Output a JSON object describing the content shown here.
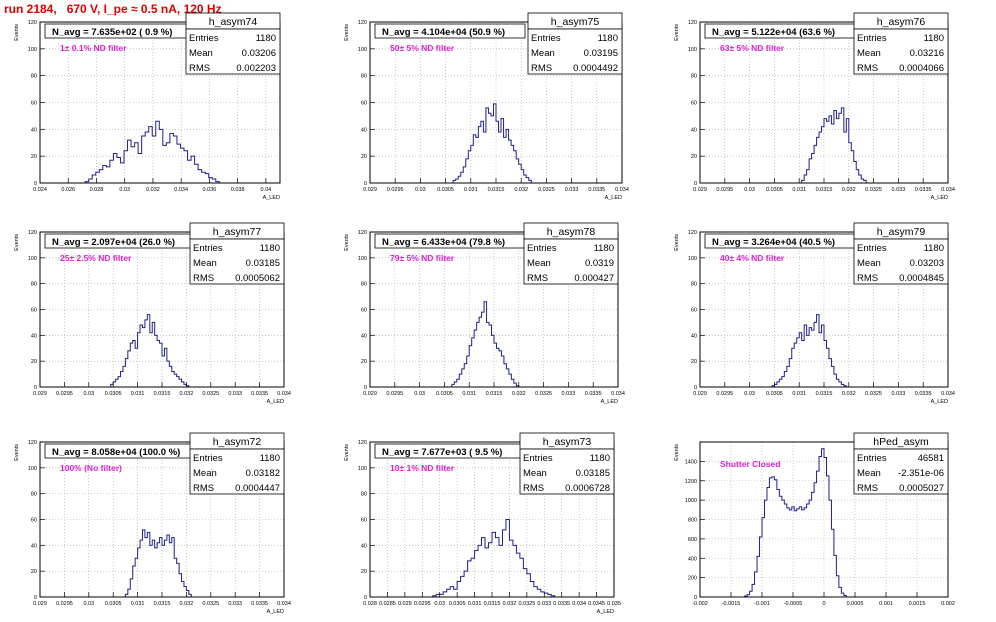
{
  "page": {
    "title": "run 2184,   670 V, I_pe ≈ 0.5 nA, 120 Hz"
  },
  "colors": {
    "histogram": "#1f1f8f",
    "frame": "#000000",
    "grid": "#a8a8a8",
    "title": "#e00000",
    "annotation": "#e020d0"
  },
  "chart_data": [
    {
      "type": "bar",
      "name": "h_asym74",
      "header": "N_avg = 7.635e+02 ( 0.9 %)",
      "filter": "1± 0.1% ND filter",
      "stats": [
        [
          "Entries",
          "1180"
        ],
        [
          "Mean",
          "0.03206"
        ],
        [
          "RMS",
          "0.002203"
        ]
      ],
      "ylabel": "Events",
      "xlabel": "A_LED",
      "xlim": [
        0.024,
        0.041
      ],
      "ylim": [
        0,
        120
      ],
      "xticks": [
        0.024,
        0.026,
        0.028,
        0.03,
        0.032,
        0.034,
        0.036,
        0.038,
        0.04
      ],
      "xticklabels": [
        "0.024",
        "0.026",
        "0.028",
        "0.03",
        "0.032",
        "0.034",
        "0.036",
        "0.038",
        "0.04"
      ],
      "yticks": [
        0,
        20,
        40,
        60,
        80,
        100,
        120
      ],
      "yticklabels": [
        "0",
        "20",
        "40",
        "60",
        "80",
        "100",
        "120"
      ],
      "bin_start": 0.0272,
      "bin_width": 0.00025,
      "values": [
        1,
        3,
        6,
        8,
        10,
        13,
        12,
        17,
        22,
        19,
        15,
        24,
        32,
        27,
        30,
        22,
        35,
        38,
        42,
        35,
        46,
        40,
        28,
        30,
        37,
        35,
        29,
        26,
        24,
        17,
        20,
        14,
        10,
        8,
        7,
        4,
        3,
        1
      ]
    },
    {
      "type": "bar",
      "name": "h_asym75",
      "header": "N_avg = 4.104e+04 (50.9 %)",
      "filter": "50± 5% ND filter",
      "stats": [
        [
          "Entries",
          "1180"
        ],
        [
          "Mean",
          "0.03195"
        ],
        [
          "RMS",
          "0.0004492"
        ]
      ],
      "ylabel": "Events",
      "xlabel": "A_LED",
      "xlim": [
        0.029,
        0.034
      ],
      "ylim": [
        0,
        120
      ],
      "xticks": [
        0.029,
        0.0295,
        0.03,
        0.0305,
        0.031,
        0.0315,
        0.032,
        0.0325,
        0.033,
        0.0335,
        0.034
      ],
      "xticklabels": [
        "0.029",
        "0.0295",
        "0.03",
        "0.0305",
        "0.031",
        "0.0315",
        "0.032",
        "0.0325",
        "0.033",
        "0.0335",
        "0.034"
      ],
      "yticks": [
        0,
        20,
        40,
        60,
        80,
        100,
        120
      ],
      "yticklabels": [
        "0",
        "20",
        "40",
        "60",
        "80",
        "100",
        "120"
      ],
      "bin_start": 0.03065,
      "bin_width": 5e-05,
      "values": [
        2,
        3,
        5,
        8,
        12,
        18,
        24,
        28,
        36,
        34,
        42,
        46,
        38,
        56,
        52,
        50,
        59,
        46,
        38,
        48,
        34,
        40,
        32,
        28,
        24,
        18,
        14,
        10,
        6,
        4,
        2
      ]
    },
    {
      "type": "bar",
      "name": "h_asym76",
      "header": "N_avg = 5.122e+04 (63.6 %)",
      "filter": "63± 5% ND filter",
      "stats": [
        [
          "Entries",
          "1180"
        ],
        [
          "Mean",
          "0.03216"
        ],
        [
          "RMS",
          "0.0004066"
        ]
      ],
      "ylabel": "Events",
      "xlabel": "A_LED",
      "xlim": [
        0.029,
        0.034
      ],
      "ylim": [
        0,
        120
      ],
      "xticks": [
        0.029,
        0.0295,
        0.03,
        0.0305,
        0.031,
        0.0315,
        0.032,
        0.0325,
        0.033,
        0.0335,
        0.034
      ],
      "xticklabels": [
        "0.029",
        "0.0295",
        "0.03",
        "0.0305",
        "0.031",
        "0.0315",
        "0.032",
        "0.0325",
        "0.033",
        "0.0335",
        "0.034"
      ],
      "yticks": [
        0,
        20,
        40,
        60,
        80,
        100,
        120
      ],
      "yticklabels": [
        "0",
        "20",
        "40",
        "60",
        "80",
        "100",
        "120"
      ],
      "bin_start": 0.03105,
      "bin_width": 5e-05,
      "values": [
        2,
        6,
        10,
        18,
        22,
        28,
        34,
        38,
        42,
        48,
        46,
        50,
        44,
        54,
        48,
        52,
        56,
        38,
        48,
        30,
        24,
        16,
        10,
        6,
        3,
        2
      ]
    },
    {
      "type": "bar",
      "name": "h_asym77",
      "header": "N_avg = 2.097e+04 (26.0 %)",
      "filter": "25± 2.5% ND filter",
      "stats": [
        [
          "Entries",
          "1180"
        ],
        [
          "Mean",
          "0.03185"
        ],
        [
          "RMS",
          "0.0005062"
        ]
      ],
      "ylabel": "Events",
      "xlabel": "A_LED",
      "xlim": [
        0.029,
        0.034
      ],
      "ylim": [
        0,
        120
      ],
      "xticks": [
        0.029,
        0.0295,
        0.03,
        0.0305,
        0.031,
        0.0315,
        0.032,
        0.0325,
        0.033,
        0.0335,
        0.034
      ],
      "xticklabels": [
        "0.029",
        "0.0295",
        "0.03",
        "0.0305",
        "0.031",
        "0.0315",
        "0.032",
        "0.0325",
        "0.033",
        "0.0335",
        "0.034"
      ],
      "yticks": [
        0,
        20,
        40,
        60,
        80,
        100,
        120
      ],
      "yticklabels": [
        "0",
        "20",
        "40",
        "60",
        "80",
        "100",
        "120"
      ],
      "bin_start": 0.03045,
      "bin_width": 5e-05,
      "values": [
        2,
        4,
        6,
        8,
        12,
        16,
        22,
        28,
        34,
        36,
        30,
        42,
        48,
        46,
        52,
        56,
        42,
        50,
        40,
        36,
        34,
        24,
        30,
        20,
        16,
        12,
        10,
        8,
        6,
        4,
        2,
        1
      ]
    },
    {
      "type": "bar",
      "name": "h_asym78",
      "header": "N_avg = 6.433e+04 (79.8 %)",
      "filter": "79± 5% ND filter",
      "stats": [
        [
          "Entries",
          "1180"
        ],
        [
          "Mean",
          "0.0319"
        ],
        [
          "RMS",
          "0.000427"
        ]
      ],
      "ylabel": "Events",
      "xlabel": "A_LED",
      "xlim": [
        0.029,
        0.034
      ],
      "ylim": [
        0,
        120
      ],
      "xticks": [
        0.029,
        0.0295,
        0.03,
        0.0305,
        0.031,
        0.0315,
        0.032,
        0.0325,
        0.033,
        0.0335,
        0.034
      ],
      "xticklabels": [
        "0.029",
        "0.0295",
        "0.03",
        "0.0305",
        "0.031",
        "0.0315",
        "0.032",
        "0.0325",
        "0.033",
        "0.0335",
        "0.034"
      ],
      "yticks": [
        0,
        20,
        40,
        60,
        80,
        100,
        120
      ],
      "yticklabels": [
        "0",
        "20",
        "40",
        "60",
        "80",
        "100",
        "120"
      ],
      "bin_start": 0.03065,
      "bin_width": 5e-05,
      "values": [
        2,
        4,
        6,
        10,
        14,
        18,
        24,
        32,
        38,
        44,
        50,
        54,
        58,
        66,
        50,
        48,
        40,
        34,
        30,
        28,
        24,
        18,
        14,
        10,
        6,
        3,
        1
      ]
    },
    {
      "type": "bar",
      "name": "h_asym79",
      "header": "N_avg = 3.264e+04 (40.5 %)",
      "filter": "40± 4% ND filter",
      "stats": [
        [
          "Entries",
          "1180"
        ],
        [
          "Mean",
          "0.03203"
        ],
        [
          "RMS",
          "0.0004845"
        ]
      ],
      "ylabel": "Events",
      "xlabel": "A_LED",
      "xlim": [
        0.029,
        0.034
      ],
      "ylim": [
        0,
        120
      ],
      "xticks": [
        0.029,
        0.0295,
        0.03,
        0.0305,
        0.031,
        0.0315,
        0.032,
        0.0325,
        0.033,
        0.0335,
        0.034
      ],
      "xticklabels": [
        "0.029",
        "0.0295",
        "0.03",
        "0.0305",
        "0.031",
        "0.0315",
        "0.032",
        "0.0325",
        "0.033",
        "0.0335",
        "0.034"
      ],
      "yticks": [
        0,
        20,
        40,
        60,
        80,
        100,
        120
      ],
      "yticklabels": [
        "0",
        "20",
        "40",
        "60",
        "80",
        "100",
        "120"
      ],
      "bin_start": 0.03045,
      "bin_width": 5e-05,
      "values": [
        1,
        2,
        4,
        6,
        8,
        12,
        16,
        22,
        30,
        34,
        38,
        42,
        36,
        48,
        40,
        46,
        44,
        50,
        56,
        42,
        48,
        36,
        30,
        22,
        16,
        10,
        6,
        4,
        2,
        1
      ]
    },
    {
      "type": "bar",
      "name": "h_asym72",
      "header": "N_avg = 8.058e+04 (100.0 %)",
      "filter": "100% (No filter)",
      "stats": [
        [
          "Entries",
          "1180"
        ],
        [
          "Mean",
          "0.03182"
        ],
        [
          "RMS",
          "0.0004447"
        ]
      ],
      "ylabel": "Events",
      "xlabel": "A_LED",
      "xlim": [
        0.029,
        0.034
      ],
      "ylim": [
        0,
        120
      ],
      "xticks": [
        0.029,
        0.0295,
        0.03,
        0.0305,
        0.031,
        0.0315,
        0.032,
        0.0325,
        0.033,
        0.0335,
        0.034
      ],
      "xticklabels": [
        "0.029",
        "0.0295",
        "0.03",
        "0.0305",
        "0.031",
        "0.0315",
        "0.032",
        "0.0325",
        "0.033",
        "0.0335",
        "0.034"
      ],
      "yticks": [
        0,
        20,
        40,
        60,
        80,
        100,
        120
      ],
      "yticklabels": [
        "0",
        "20",
        "40",
        "60",
        "80",
        "100",
        "120"
      ],
      "bin_start": 0.03075,
      "bin_width": 5e-05,
      "values": [
        2,
        6,
        14,
        24,
        30,
        38,
        44,
        52,
        46,
        50,
        40,
        44,
        38,
        42,
        46,
        40,
        44,
        48,
        42,
        46,
        30,
        26,
        18,
        12,
        8,
        5,
        2
      ]
    },
    {
      "type": "bar",
      "name": "h_asym73",
      "header": "N_avg = 7.677e+03 ( 9.5 %)",
      "filter": "10± 1% ND filter",
      "stats": [
        [
          "Entries",
          "1180"
        ],
        [
          "Mean",
          "0.03185"
        ],
        [
          "RMS",
          "0.0006728"
        ]
      ],
      "ylabel": "Events",
      "xlabel": "A_LED",
      "xlim": [
        0.028,
        0.035
      ],
      "ylim": [
        0,
        120
      ],
      "xticks": [
        0.028,
        0.0285,
        0.029,
        0.0295,
        0.03,
        0.0305,
        0.031,
        0.0315,
        0.032,
        0.0325,
        0.033,
        0.0335,
        0.034,
        0.0345,
        0.035
      ],
      "xticklabels": [
        "0.028",
        "0.0285",
        "0.029",
        "0.0295",
        "0.03",
        "0.0305",
        "0.031",
        "0.0315",
        "0.032",
        "0.0325",
        "0.033",
        "0.0335",
        "0.034",
        "0.0345",
        "0.035"
      ],
      "yticks": [
        0,
        20,
        40,
        60,
        80,
        100,
        120
      ],
      "yticklabels": [
        "0",
        "20",
        "40",
        "60",
        "80",
        "100",
        "120"
      ],
      "bin_start": 0.0298,
      "bin_width": 0.0001,
      "values": [
        1,
        2,
        2,
        4,
        6,
        8,
        6,
        12,
        16,
        20,
        28,
        30,
        36,
        40,
        46,
        38,
        42,
        50,
        46,
        40,
        52,
        60,
        44,
        40,
        34,
        30,
        22,
        18,
        12,
        8,
        6,
        4,
        3,
        2,
        1
      ]
    },
    {
      "type": "bar",
      "name": "hPed_asym",
      "header": "",
      "filter": "Shutter Closed",
      "stats": [
        [
          "Entries",
          "46581"
        ],
        [
          "Mean",
          "-2.351e-06"
        ],
        [
          "RMS",
          "0.0005027"
        ]
      ],
      "ylabel": "Events",
      "xlabel": "",
      "xlim": [
        -0.002,
        0.002
      ],
      "ylim": [
        0,
        1600
      ],
      "xticks": [
        -0.002,
        -0.0015,
        -0.001,
        -0.0005,
        0,
        0.0005,
        0.001,
        0.0015,
        0.002
      ],
      "xticklabels": [
        "-0.002",
        "-0.0015",
        "-0.001",
        "-0.0005",
        "0",
        "0.0005",
        "0.001",
        "0.0015",
        "0.002"
      ],
      "yticks": [
        0,
        200,
        400,
        600,
        800,
        1000,
        1200,
        1400
      ],
      "yticklabels": [
        "0",
        "200",
        "400",
        "600",
        "800",
        "1000",
        "1200",
        "1400"
      ],
      "bin_start": -0.00128,
      "bin_width": 4e-05,
      "values": [
        10,
        25,
        60,
        130,
        260,
        420,
        620,
        820,
        1000,
        1130,
        1230,
        1240,
        1210,
        1110,
        1040,
        1000,
        960,
        920,
        900,
        930,
        890,
        910,
        930,
        900,
        920,
        960,
        1000,
        1080,
        1180,
        1300,
        1450,
        1530,
        1440,
        1250,
        1000,
        700,
        430,
        220,
        100,
        40,
        15
      ]
    }
  ]
}
